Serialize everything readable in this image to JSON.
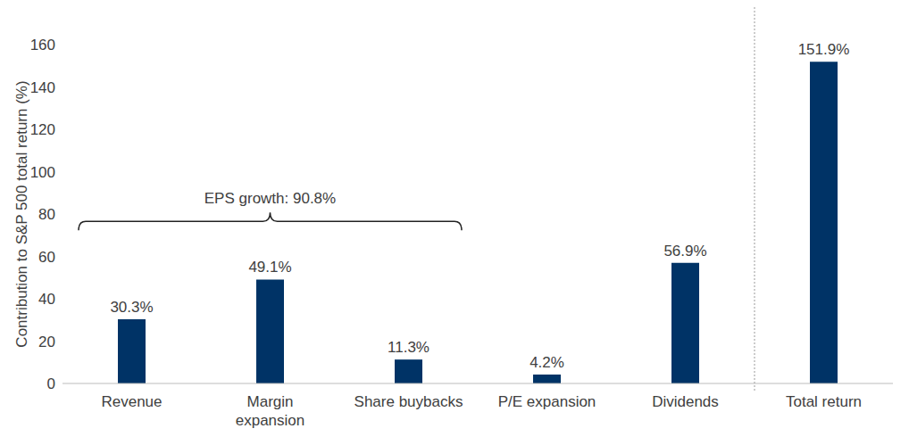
{
  "chart_data": {
    "type": "bar",
    "ylabel": "Contribution to S&P 500 total return (%)",
    "categories": [
      "Revenue",
      "Margin\nexpansion",
      "Share buybacks",
      "P/E expansion",
      "Dividends",
      "Total return"
    ],
    "values": [
      30.3,
      49.1,
      11.3,
      4.2,
      56.9,
      151.9
    ],
    "value_labels": [
      "30.3%",
      "49.1%",
      "11.3%",
      "4.2%",
      "56.9%",
      "151.9%"
    ],
    "data_labels": true,
    "color": "#003366",
    "ylim": [
      0,
      160
    ],
    "yticks": [
      0,
      20,
      40,
      60,
      80,
      100,
      120,
      140,
      160
    ],
    "grid": false,
    "annotation": {
      "text": "EPS growth: 90.8%",
      "value": 90.8,
      "from": "Revenue",
      "to": "Share buybacks"
    }
  }
}
